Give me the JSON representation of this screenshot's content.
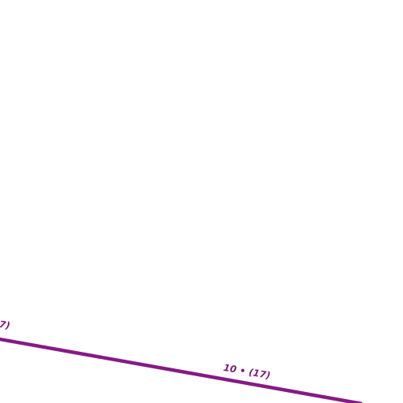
{
  "road": {
    "label": "10 • (17)"
  }
}
